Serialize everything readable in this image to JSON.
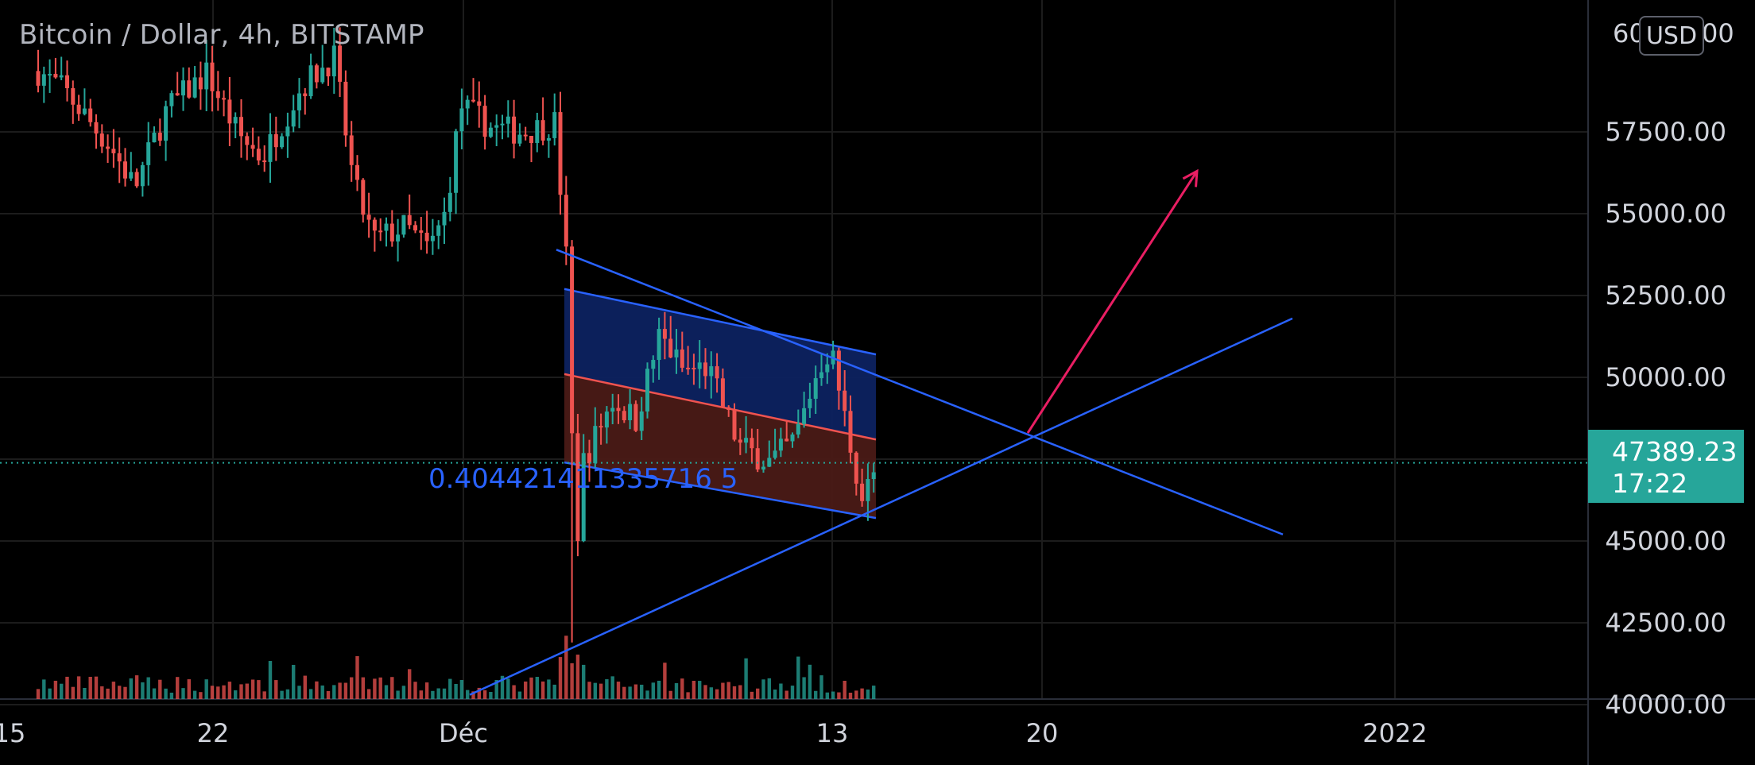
{
  "header": {
    "symbol_title": "Bitcoin / Dollar, 4h, BITSTAMP",
    "currency_button": "USD"
  },
  "last_price": {
    "value": "47389.23",
    "countdown": "17:22"
  },
  "colors": {
    "background": "#000000",
    "grid": "#1c1c1c",
    "up_candle": "#26a69a",
    "down_candle": "#ef5350",
    "trendline": "#2962ff",
    "arrow": "#e91e63",
    "channel_upper_fill": "#0d2260",
    "channel_lower_fill": "#4a1a16",
    "price_line": "#26a69a"
  },
  "chart_data": {
    "type": "candlestick",
    "y_ticks": [
      "57500.00",
      "55000.00",
      "52500.00",
      "50000.00",
      "45000.00",
      "42500.00",
      "40000.00"
    ],
    "y_tick_partial": "60000.00",
    "ylim": [
      40000,
      61000
    ],
    "y_scale": "linear",
    "x_ticks": [
      "15",
      "22",
      "Déc",
      "13",
      "20",
      "2022"
    ],
    "current_price": 47389.23,
    "fib_ratio_label": "0.404421411335716 5",
    "annotations": {
      "descending_channel_top": [
        [
          "2021-12-04",
          53900
        ],
        [
          "2021-12-24",
          45200
        ]
      ],
      "ascending_support": [
        [
          "2021-11-29",
          40300
        ],
        [
          "2021-12-26",
          51800
        ]
      ],
      "projection_arrow": [
        [
          "2021-12-20",
          48500
        ],
        [
          "2021-12-25",
          56200
        ]
      ]
    },
    "grid": true,
    "volume_pane": true
  }
}
